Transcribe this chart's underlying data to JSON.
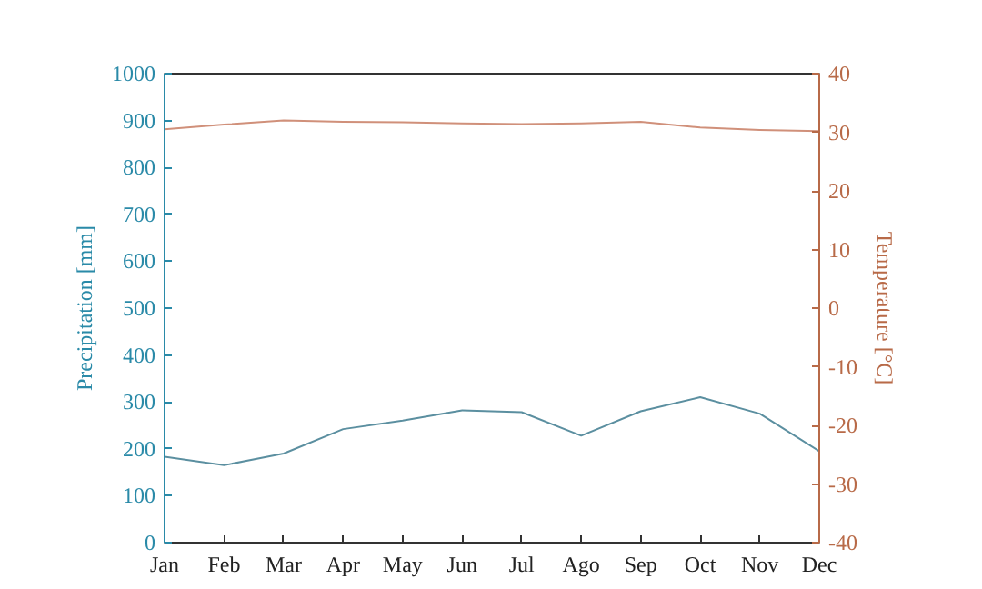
{
  "chart_data": {
    "type": "line",
    "categories": [
      "Jan",
      "Feb",
      "Mar",
      "Apr",
      "May",
      "Jun",
      "Jul",
      "Ago",
      "Sep",
      "Oct",
      "Nov",
      "Dec"
    ],
    "ylabel": "Precipitation [mm]",
    "y2label": "Temperature [°C]",
    "ylim": [
      0,
      1000
    ],
    "yticks": [
      0,
      100,
      200,
      300,
      400,
      500,
      600,
      700,
      800,
      900,
      1000
    ],
    "y2lim": [
      -40,
      40
    ],
    "y2ticks": [
      -40,
      -30,
      -20,
      -10,
      0,
      10,
      20,
      30,
      40
    ],
    "grid": false,
    "series": [
      {
        "color": "#5b8fa0",
        "values": [
          183,
          165,
          190,
          242,
          260,
          282,
          278,
          228,
          280,
          310,
          275,
          195
        ]
      },
      {
        "color": "#d0907a",
        "axis": "y2",
        "values": [
          30.5,
          31.3,
          32,
          31.8,
          31.7,
          31.5,
          31.4,
          31.5,
          31.8,
          30.8,
          30.4,
          30.2
        ]
      }
    ]
  }
}
